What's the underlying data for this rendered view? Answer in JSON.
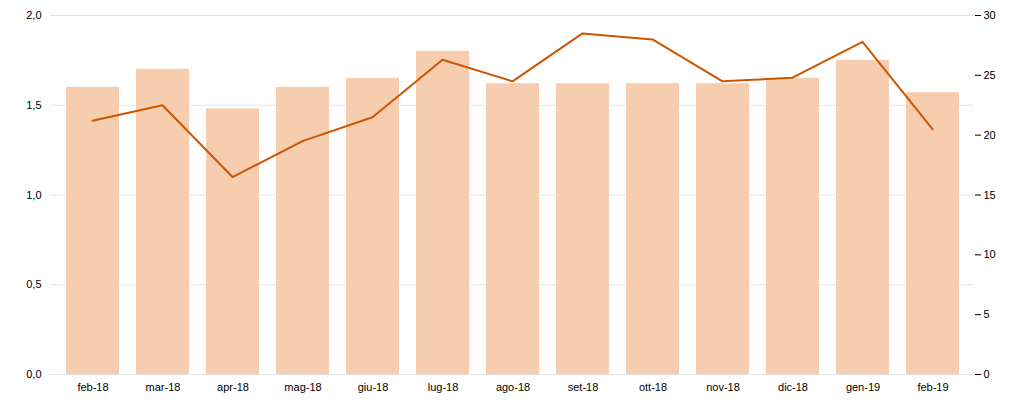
{
  "chart_data": {
    "type": "bar",
    "categories": [
      "feb-18",
      "mar-18",
      "apr-18",
      "mag-18",
      "giu-18",
      "lug-18",
      "ago-18",
      "set-18",
      "ott-18",
      "nov-18",
      "dic-18",
      "gen-19",
      "feb-19"
    ],
    "series": [
      {
        "type": "bar",
        "color": "#f7cdb0",
        "values": [
          1.6,
          1.7,
          1.48,
          1.6,
          1.65,
          1.8,
          1.62,
          1.62,
          1.62,
          1.62,
          1.65,
          1.75,
          1.57
        ]
      },
      {
        "type": "line",
        "color": "#cc5500",
        "axis": "y2",
        "values": [
          21.2,
          22.5,
          16.5,
          19.5,
          21.5,
          26.3,
          24.5,
          28.5,
          28.0,
          24.5,
          24.8,
          27.8,
          20.5
        ]
      }
    ],
    "ylim": [
      0,
      2
    ],
    "yticks": [
      {
        "value": 0,
        "label": "0,0"
      },
      {
        "value": 0.5,
        "label": "0,5"
      },
      {
        "value": 1,
        "label": "1,0"
      },
      {
        "value": 1.5,
        "label": "1,5"
      },
      {
        "value": 2,
        "label": "2,0"
      }
    ],
    "y2lim": [
      0,
      30
    ],
    "y2ticks": [
      0,
      5,
      10,
      15,
      20,
      25,
      30
    ],
    "grid": true
  }
}
